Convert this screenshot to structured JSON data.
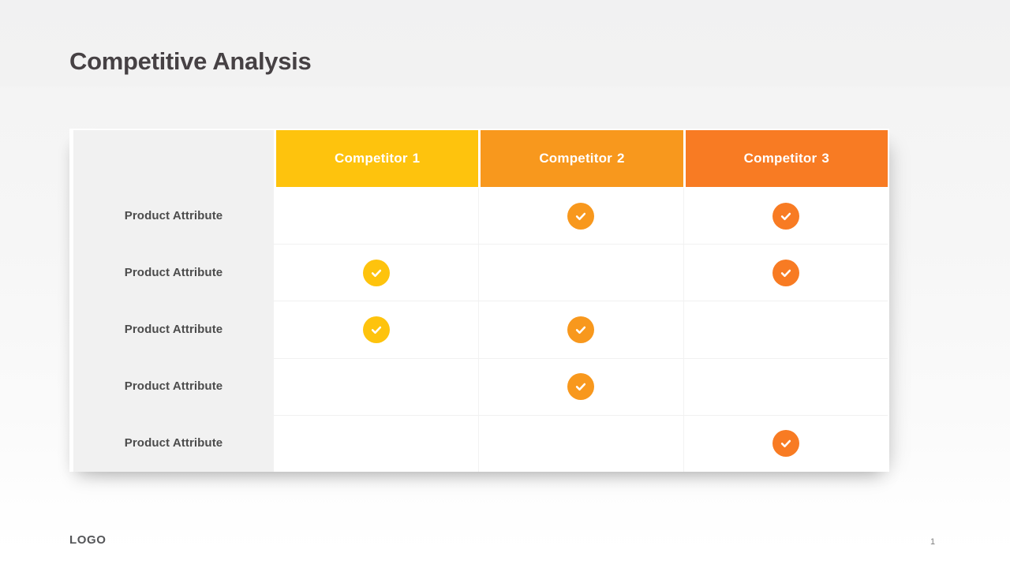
{
  "slide": {
    "title": "Competitive Analysis",
    "footer_logo": "LOGO",
    "page_number": "1"
  },
  "table": {
    "columns": [
      {
        "label": "Competitor",
        "number": "1",
        "color": "#FEC30D"
      },
      {
        "label": "Competitor",
        "number": "2",
        "color": "#F8981D"
      },
      {
        "label": "Competitor",
        "number": "3",
        "color": "#F87B23"
      }
    ],
    "rows": [
      {
        "label": "Product Attribute",
        "checks": [
          false,
          true,
          true
        ]
      },
      {
        "label": "Product Attribute",
        "checks": [
          true,
          false,
          true
        ]
      },
      {
        "label": "Product Attribute",
        "checks": [
          true,
          true,
          false
        ]
      },
      {
        "label": "Product Attribute",
        "checks": [
          false,
          true,
          false
        ]
      },
      {
        "label": "Product Attribute",
        "checks": [
          false,
          false,
          true
        ]
      }
    ],
    "check_icon": "checkmark-icon"
  },
  "colors": {
    "row_header_bg": "#F1F1F1",
    "title_text": "#464144",
    "grid_line": "#F2F2F2",
    "background_top": "#F2F2F2",
    "background_bottom": "#FFFFFF"
  }
}
